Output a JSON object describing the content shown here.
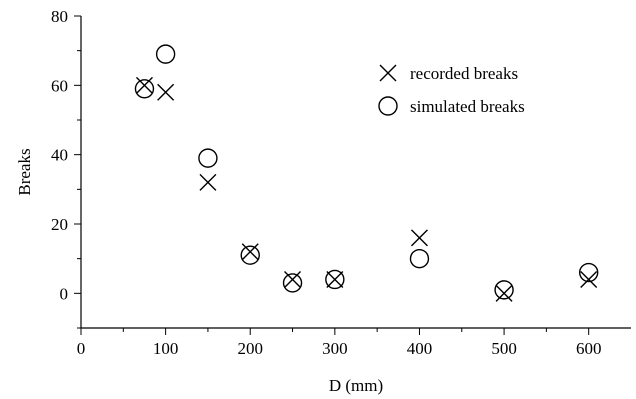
{
  "chart_data": {
    "type": "scatter",
    "xlabel": "D (mm)",
    "ylabel": "Breaks",
    "xlim": [
      0,
      650
    ],
    "ylim": [
      -10,
      80
    ],
    "x_ticks": [
      0,
      100,
      200,
      300,
      400,
      500,
      600
    ],
    "y_ticks": [
      0,
      20,
      40,
      60,
      80
    ],
    "grid": false,
    "legend_position": "top-right",
    "series": [
      {
        "name": "recorded breaks",
        "marker": "x",
        "x": [
          75,
          100,
          150,
          200,
          250,
          300,
          400,
          500,
          600
        ],
        "y": [
          60,
          58,
          32,
          12,
          4,
          4,
          16,
          0,
          4
        ]
      },
      {
        "name": "simulated breaks",
        "marker": "circle",
        "x": [
          75,
          100,
          150,
          200,
          250,
          300,
          400,
          500,
          600
        ],
        "y": [
          59,
          69,
          39,
          11,
          3,
          4,
          10,
          1,
          6
        ]
      }
    ]
  }
}
